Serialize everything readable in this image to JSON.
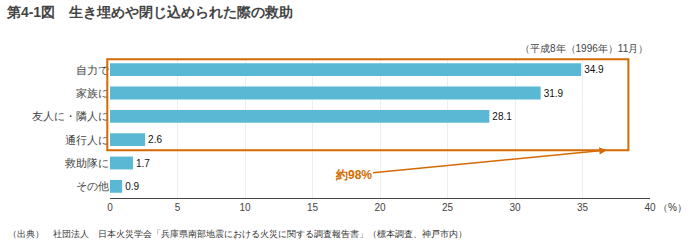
{
  "chart_data": {
    "type": "bar",
    "orientation": "horizontal",
    "title_label": "第4-1図",
    "title": "生き埋めや閉じ込められた際の救助",
    "subtitle": "（平成8年（1996年）11月）",
    "categories": [
      "自力で",
      "家族に",
      "友人に・隣人に",
      "通行人に",
      "救助隊に",
      "その他"
    ],
    "values": [
      34.9,
      31.9,
      28.1,
      2.6,
      1.7,
      0.9
    ],
    "color": "#5bb8d4",
    "xlim": [
      0,
      40
    ],
    "xticks": [
      0,
      5,
      10,
      15,
      20,
      25,
      30,
      35,
      40
    ],
    "xlabel": "（%）",
    "grid": true,
    "data_labels": true,
    "annotations": [
      {
        "text": "約98%",
        "color": "#d46a00",
        "categories": [
          "自力で",
          "家族に",
          "友人に・隣人に",
          "通行人に"
        ]
      }
    ],
    "footer": "（出典）　社団法人　日本火災学会「兵庫県南部地震における火災に関する調査報告書」（標本調査、神戸市内）"
  }
}
